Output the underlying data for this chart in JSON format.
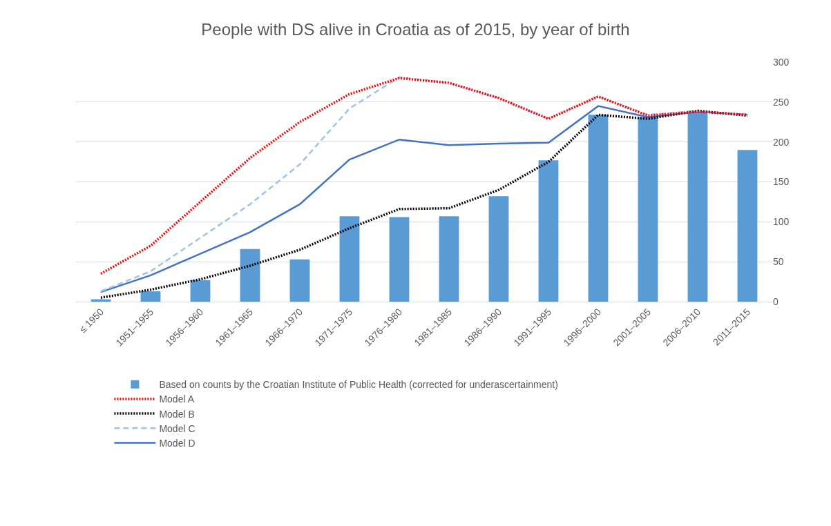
{
  "chart_data": {
    "type": "bar",
    "title": "People with DS alive in Croatia as of 2015, by year of birth",
    "categories": [
      "≤ 1950",
      "1951–1955",
      "1956–1960",
      "1961–1965",
      "1966–1970",
      "1971–1975",
      "1976–1980",
      "1981–1985",
      "1986–1990",
      "1991–1995",
      "1996–2000",
      "2001–2005",
      "2006–2010",
      "2011–2015"
    ],
    "series": [
      {
        "name": "Based on counts by the Croatian Institute of Public Health (corrected for underascertainment)",
        "color": "#5b9bd5",
        "values": [
          3,
          13,
          27,
          66,
          53,
          107,
          106,
          107,
          132,
          177,
          234,
          231,
          237,
          190
        ]
      },
      {
        "name": "Model A",
        "type": "line",
        "line_style": "dotted",
        "color": "#ff0000",
        "values": [
          35,
          70,
          125,
          180,
          225,
          260,
          280,
          274,
          255,
          229,
          257,
          233,
          238,
          234
        ]
      },
      {
        "name": "Model B",
        "type": "line",
        "line_style": "dotted",
        "color": "#000000",
        "values": [
          5,
          15,
          28,
          45,
          65,
          92,
          116,
          117,
          140,
          175,
          234,
          229,
          239,
          233
        ]
      },
      {
        "name": "Model C",
        "type": "line",
        "line_style": "dashed",
        "color": "#9dc3e6",
        "values": [
          13,
          38,
          80,
          122,
          172,
          242,
          281,
          274,
          255,
          229,
          257,
          234,
          239,
          234
        ]
      },
      {
        "name": "Model D",
        "type": "line",
        "line_style": "solid",
        "color": "#4472c4",
        "values": [
          12,
          33,
          60,
          87,
          122,
          178,
          203,
          196,
          198,
          199,
          245,
          231,
          238,
          234
        ]
      }
    ],
    "ylim": [
      0,
      300
    ],
    "yticks": [
      0,
      50,
      100,
      150,
      200,
      250,
      300
    ],
    "grid": "y",
    "legend": "bottom"
  }
}
